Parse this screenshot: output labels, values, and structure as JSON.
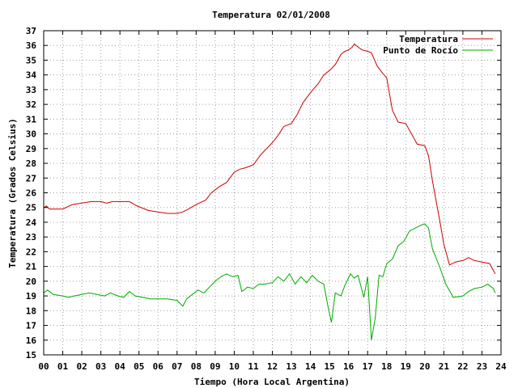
{
  "chart_data": {
    "type": "line",
    "title": "Temperatura 02/01/2008",
    "xlabel": "Tiempo (Hora Local Argentina)",
    "ylabel": "Temperatura (Grados Celsius)",
    "xlim": [
      0,
      24
    ],
    "ylim": [
      15,
      37
    ],
    "x_ticks": [
      "00",
      "01",
      "02",
      "03",
      "04",
      "05",
      "06",
      "07",
      "08",
      "09",
      "10",
      "11",
      "12",
      "13",
      "14",
      "15",
      "16",
      "17",
      "18",
      "19",
      "20",
      "21",
      "22",
      "23",
      "24"
    ],
    "y_ticks": [
      15,
      16,
      17,
      18,
      19,
      20,
      21,
      22,
      23,
      24,
      25,
      26,
      27,
      28,
      29,
      30,
      31,
      32,
      33,
      34,
      35,
      36,
      37
    ],
    "grid": true,
    "legend_position": "top-right",
    "series": [
      {
        "name": "Temperatura",
        "color": "#cc0000",
        "points": [
          [
            0,
            25.0
          ],
          [
            0.15,
            25.1
          ],
          [
            0.3,
            24.9
          ],
          [
            1.0,
            24.9
          ],
          [
            1.5,
            25.2
          ],
          [
            2.0,
            25.3
          ],
          [
            2.5,
            25.4
          ],
          [
            3.0,
            25.4
          ],
          [
            3.3,
            25.3
          ],
          [
            3.6,
            25.4
          ],
          [
            4.0,
            25.4
          ],
          [
            4.5,
            25.4
          ],
          [
            4.9,
            25.1
          ],
          [
            5.5,
            24.8
          ],
          [
            6.0,
            24.7
          ],
          [
            6.5,
            24.6
          ],
          [
            7.0,
            24.6
          ],
          [
            7.3,
            24.7
          ],
          [
            7.6,
            24.9
          ],
          [
            8.0,
            25.2
          ],
          [
            8.5,
            25.5
          ],
          [
            8.8,
            26.0
          ],
          [
            9.2,
            26.4
          ],
          [
            9.6,
            26.7
          ],
          [
            10.0,
            27.4
          ],
          [
            10.3,
            27.6
          ],
          [
            10.6,
            27.7
          ],
          [
            11.0,
            27.9
          ],
          [
            11.4,
            28.6
          ],
          [
            11.7,
            29.0
          ],
          [
            12.0,
            29.4
          ],
          [
            12.3,
            29.9
          ],
          [
            12.6,
            30.5
          ],
          [
            13.0,
            30.7
          ],
          [
            13.3,
            31.3
          ],
          [
            13.6,
            32.1
          ],
          [
            14.0,
            32.8
          ],
          [
            14.4,
            33.4
          ],
          [
            14.7,
            34.0
          ],
          [
            15.0,
            34.3
          ],
          [
            15.3,
            34.7
          ],
          [
            15.6,
            35.4
          ],
          [
            15.8,
            35.6
          ],
          [
            16.0,
            35.7
          ],
          [
            16.2,
            35.9
          ],
          [
            16.3,
            36.1
          ],
          [
            16.5,
            35.9
          ],
          [
            16.7,
            35.7
          ],
          [
            17.0,
            35.6
          ],
          [
            17.2,
            35.5
          ],
          [
            17.5,
            34.6
          ],
          [
            17.8,
            34.1
          ],
          [
            18.0,
            33.8
          ],
          [
            18.3,
            31.6
          ],
          [
            18.6,
            30.8
          ],
          [
            19.0,
            30.7
          ],
          [
            19.3,
            30.0
          ],
          [
            19.6,
            29.3
          ],
          [
            20.0,
            29.2
          ],
          [
            20.2,
            28.5
          ],
          [
            20.4,
            26.8
          ],
          [
            20.8,
            24.0
          ],
          [
            21.0,
            22.5
          ],
          [
            21.3,
            21.1
          ],
          [
            21.6,
            21.3
          ],
          [
            22.0,
            21.4
          ],
          [
            22.3,
            21.6
          ],
          [
            22.6,
            21.4
          ],
          [
            23.0,
            21.3
          ],
          [
            23.4,
            21.2
          ],
          [
            23.7,
            20.5
          ]
        ]
      },
      {
        "name": "Punto de Rocío",
        "color": "#00aa00",
        "points": [
          [
            0,
            19.2
          ],
          [
            0.2,
            19.4
          ],
          [
            0.5,
            19.1
          ],
          [
            1.0,
            19.0
          ],
          [
            1.3,
            18.9
          ],
          [
            1.6,
            19.0
          ],
          [
            2.0,
            19.1
          ],
          [
            2.4,
            19.2
          ],
          [
            2.8,
            19.1
          ],
          [
            3.2,
            19.0
          ],
          [
            3.5,
            19.2
          ],
          [
            3.9,
            19.0
          ],
          [
            4.2,
            18.9
          ],
          [
            4.5,
            19.3
          ],
          [
            4.8,
            19.0
          ],
          [
            5.2,
            18.9
          ],
          [
            5.6,
            18.8
          ],
          [
            6.0,
            18.8
          ],
          [
            6.5,
            18.8
          ],
          [
            7.0,
            18.7
          ],
          [
            7.3,
            18.3
          ],
          [
            7.5,
            18.8
          ],
          [
            7.8,
            19.1
          ],
          [
            8.1,
            19.4
          ],
          [
            8.4,
            19.2
          ],
          [
            8.7,
            19.6
          ],
          [
            9.0,
            20.0
          ],
          [
            9.3,
            20.3
          ],
          [
            9.6,
            20.5
          ],
          [
            9.9,
            20.3
          ],
          [
            10.2,
            20.4
          ],
          [
            10.4,
            19.3
          ],
          [
            10.7,
            19.6
          ],
          [
            11.0,
            19.5
          ],
          [
            11.3,
            19.8
          ],
          [
            11.6,
            19.8
          ],
          [
            12.0,
            19.9
          ],
          [
            12.3,
            20.3
          ],
          [
            12.6,
            20.0
          ],
          [
            12.9,
            20.5
          ],
          [
            13.2,
            19.8
          ],
          [
            13.5,
            20.3
          ],
          [
            13.8,
            19.9
          ],
          [
            14.1,
            20.4
          ],
          [
            14.4,
            20.0
          ],
          [
            14.7,
            19.8
          ],
          [
            14.9,
            18.4
          ],
          [
            15.1,
            17.2
          ],
          [
            15.3,
            19.2
          ],
          [
            15.6,
            19.0
          ],
          [
            15.8,
            19.7
          ],
          [
            16.1,
            20.5
          ],
          [
            16.3,
            20.2
          ],
          [
            16.5,
            20.4
          ],
          [
            16.8,
            18.9
          ],
          [
            17.0,
            20.3
          ],
          [
            17.2,
            16.0
          ],
          [
            17.4,
            17.5
          ],
          [
            17.6,
            20.4
          ],
          [
            17.8,
            20.3
          ],
          [
            18.0,
            21.2
          ],
          [
            18.3,
            21.5
          ],
          [
            18.6,
            22.4
          ],
          [
            18.9,
            22.7
          ],
          [
            19.2,
            23.4
          ],
          [
            19.5,
            23.6
          ],
          [
            19.8,
            23.8
          ],
          [
            20.0,
            23.9
          ],
          [
            20.2,
            23.6
          ],
          [
            20.4,
            22.2
          ],
          [
            20.8,
            20.9
          ],
          [
            21.1,
            19.8
          ],
          [
            21.5,
            18.9
          ],
          [
            22.0,
            19.0
          ],
          [
            22.3,
            19.3
          ],
          [
            22.6,
            19.5
          ],
          [
            23.0,
            19.6
          ],
          [
            23.3,
            19.8
          ],
          [
            23.6,
            19.5
          ],
          [
            23.7,
            19.2
          ]
        ]
      }
    ]
  }
}
